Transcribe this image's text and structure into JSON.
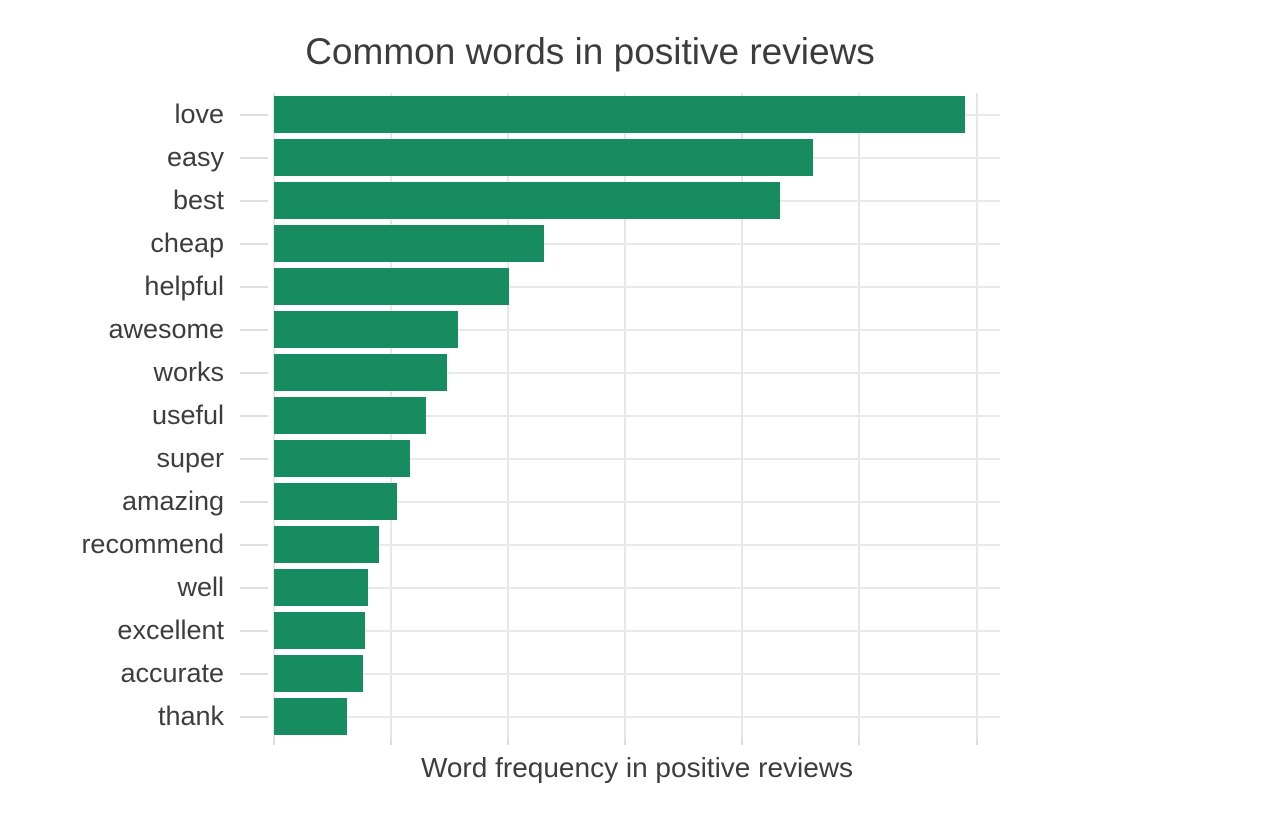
{
  "chart_data": {
    "type": "bar",
    "orientation": "horizontal",
    "title": "Common words in positive reviews",
    "xlabel": "Word frequency in positive reviews",
    "ylabel": "",
    "categories": [
      "love",
      "easy",
      "best",
      "cheap",
      "helpful",
      "awesome",
      "works",
      "useful",
      "super",
      "amazing",
      "recommend",
      "well",
      "excellent",
      "accurate",
      "thank"
    ],
    "values": [
      5.9,
      4.6,
      4.32,
      2.31,
      2.01,
      1.57,
      1.48,
      1.3,
      1.16,
      1.05,
      0.9,
      0.8,
      0.78,
      0.76,
      0.62
    ],
    "note": "No numeric x tick labels are shown; values estimated in gridline units (one unit per vertical gridline interval).",
    "xlim": [
      0,
      6.2
    ],
    "gridline_interval": 1,
    "num_vertical_gridlines": 7,
    "grid": true,
    "legend": "none",
    "bar_color": "#168c60",
    "background_color": "#ffffff",
    "text_color": "#3d3d3d",
    "grid_color": "#e7e7e7",
    "tick_color": "#dedede"
  }
}
